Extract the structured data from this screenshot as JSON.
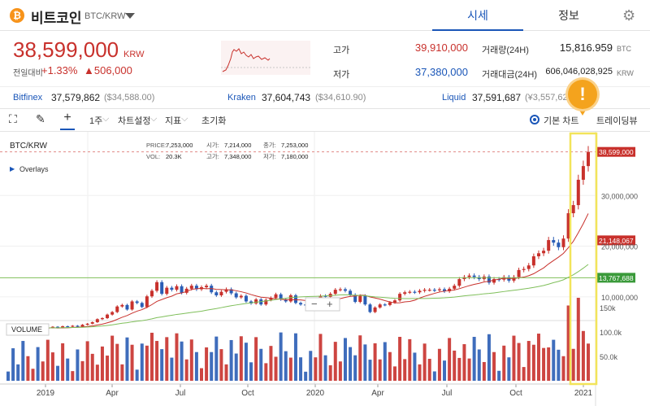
{
  "header": {
    "coin_symbol": "₿",
    "coin_name": "비트코인",
    "pair": "BTC/KRW",
    "tabs": [
      "시세",
      "정보"
    ],
    "settings_icon": "gear-icon"
  },
  "ticker": {
    "price": "38,599,000",
    "unit": "KRW",
    "prev_label": "전일대비",
    "change_rate": "+1.33%",
    "change_amount": "▲506,000",
    "high_label": "고가",
    "high_value": "39,910,000",
    "low_label": "저가",
    "low_value": "37,380,000",
    "volume_label": "거래량(24H)",
    "volume_value": "15,816.959",
    "volume_unit": "BTC",
    "turnover_label": "거래대금(24H)",
    "turnover_value": "606,046,028,925",
    "turnover_unit": "KRW"
  },
  "exchanges": [
    {
      "name": "Bitfinex",
      "price": "37,579,862",
      "usd": "($34,588.00)"
    },
    {
      "name": "Kraken",
      "price": "37,604,743",
      "usd": "($34,610.90)"
    },
    {
      "name": "Liquid",
      "price": "37,591,687",
      "usd": "(¥3,557,62"
    }
  ],
  "toolbar": {
    "interval": "1주",
    "chart_settings": "차트설정",
    "indicators": "지표",
    "reset": "초기화",
    "basic_chart": "기본 차트",
    "trading_view": "트레이딩뷰"
  },
  "colors": {
    "up": "#c8312c",
    "down": "#2a5db5",
    "ma_long": "#7fbf5a",
    "accent": "#1a56b8",
    "highlight": "#f2e45a"
  },
  "chart_data": {
    "type": "candlestick",
    "symbol": "BTC/KRW",
    "overlays_label": "Overlays",
    "volume_label": "VOLUME",
    "ohlc_labels": {
      "price": "PRICE:",
      "open": "시가:",
      "close": "종가:",
      "vol": "VOL:",
      "high": "고가:",
      "low": "저가:"
    },
    "ohlc_values": {
      "price": "7,253,000",
      "open": "7,214,000",
      "close": "7,253,000",
      "vol": "20.3K",
      "high": "7,348,000",
      "low": "7,180,000"
    },
    "y_ticks": [
      "30,000,000",
      "20,000,000",
      "10,000,000"
    ],
    "y_tick_values": [
      30000000,
      20000000,
      10000000
    ],
    "volume_ticks": [
      "150k",
      "100.0k",
      "50.0k"
    ],
    "volume_tick_values": [
      150000,
      100000,
      50000
    ],
    "x_ticks": [
      "2019",
      "Apr",
      "Jul",
      "Oct",
      "2020",
      "Apr",
      "Jul",
      "Oct",
      "2021"
    ],
    "price_markers": [
      {
        "label": "38,599,000",
        "value": 38599000,
        "color": "#c8312c"
      },
      {
        "label": "21,148,067",
        "value": 21148067,
        "color": "#c8312c"
      },
      {
        "label": "13,767,688",
        "value": 13767688,
        "color": "#3a9a3a"
      }
    ],
    "closes_millions": [
      4.4,
      4.0,
      3.9,
      3.6,
      3.7,
      3.9,
      3.7,
      3.8,
      3.9,
      4.1,
      3.9,
      4.2,
      4.1,
      4.3,
      4.1,
      4.5,
      4.7,
      5.0,
      5.6,
      5.8,
      6.5,
      7.0,
      8.1,
      8.4,
      7.5,
      9.1,
      8.8,
      8.0,
      10.1,
      11.2,
      12.9,
      10.6,
      11.8,
      11.4,
      12.1,
      10.8,
      11.6,
      12.2,
      11.5,
      11.9,
      12.2,
      10.9,
      10.3,
      11.0,
      11.5,
      10.7,
      9.9,
      10.2,
      9.1,
      8.7,
      9.5,
      8.5,
      9.4,
      9.8,
      10.5,
      9.5,
      9.1,
      10.3,
      8.8,
      8.5,
      8.3,
      8.2,
      9.1,
      10.2,
      10.0,
      10.6,
      11.4,
      11.5,
      11.2,
      10.4,
      9.0,
      10.2,
      8.5,
      7.0,
      7.9,
      8.5,
      8.4,
      8.9,
      9.3,
      10.6,
      10.9,
      11.0,
      10.9,
      11.2,
      11.4,
      11.4,
      11.3,
      11.5,
      11.1,
      11.6,
      12.2,
      13.5,
      13.9,
      14.2,
      13.9,
      13.5,
      14.0,
      12.8,
      13.5,
      13.4,
      13.9,
      13.2,
      13.9,
      15.3,
      15.5,
      16.2,
      18.0,
      18.6,
      19.1,
      21.2,
      20.7,
      19.8,
      21.5,
      26.5,
      28.1,
      33.1,
      35.8,
      38.6
    ]
  }
}
